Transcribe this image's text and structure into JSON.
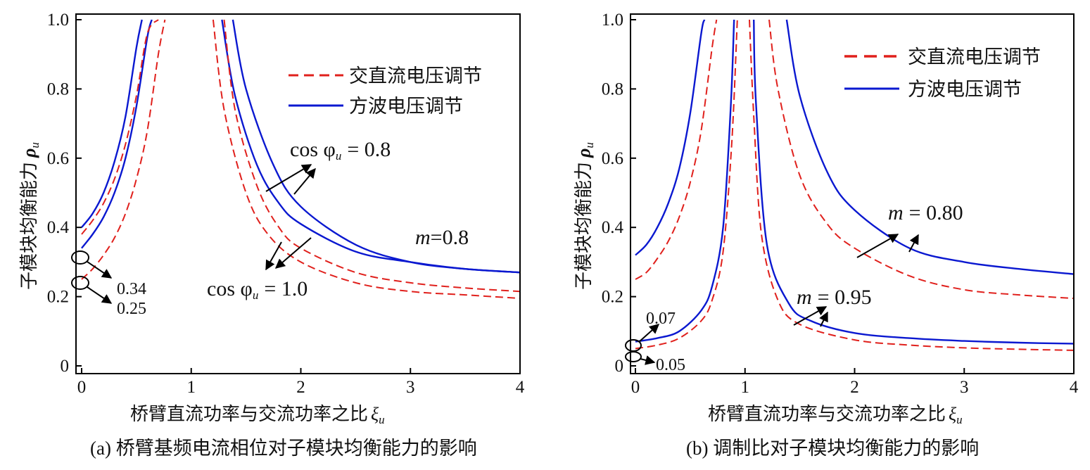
{
  "colors": {
    "ac_dc": "#e0201c",
    "square": "#0a18d0",
    "annotation": "#000000"
  },
  "chart_data": [
    {
      "type": "line",
      "caption": "(a) 桥臂基频电流相位对子模块均衡能力的影响",
      "xlabel": "桥臂直流功率与交流功率之比",
      "xlabel_symbol": "ξ",
      "xlabel_sub": "u",
      "ylabel": "子模块均衡能力",
      "ylabel_symbol": "ρ",
      "ylabel_sub": "u",
      "xlim": [
        0,
        4
      ],
      "ylim": [
        0,
        1.0
      ],
      "xticks": [
        "0",
        "1",
        "2",
        "3",
        "4"
      ],
      "yticks": [
        "0",
        "0.2",
        "0.4",
        "0.6",
        "0.8",
        "1.0"
      ],
      "legend": {
        "position": "top-right",
        "entries": [
          "交直流电压调节",
          "方波电压调节"
        ]
      },
      "annotations": {
        "m_label": "m=0.8",
        "cos_top": "cos φ",
        "cos_top_sub": "u",
        "cos_top_value": "= 0.8",
        "cos_bottom": "cos φ",
        "cos_bottom_sub": "u",
        "cos_bottom_value": "= 1.0",
        "val1": "0.34",
        "val2": "0.25"
      },
      "series": [
        {
          "legend": "方波电压调节",
          "style": "solid",
          "x_left": [
            0,
            0.1,
            0.2,
            0.3,
            0.4,
            0.5,
            0.55
          ],
          "y_left": [
            0.4,
            0.44,
            0.5,
            0.59,
            0.72,
            0.92,
            1.0
          ],
          "x_right": [
            1.38,
            1.5,
            1.75,
            2.0,
            2.5,
            3.0,
            3.5,
            4.0
          ],
          "y_right": [
            1.0,
            0.8,
            0.58,
            0.46,
            0.35,
            0.3,
            0.28,
            0.27
          ]
        },
        {
          "legend": "方波电压调节",
          "style": "solid",
          "x_left": [
            0,
            0.1,
            0.2,
            0.3,
            0.4,
            0.5,
            0.6,
            0.64
          ],
          "y_left": [
            0.34,
            0.38,
            0.43,
            0.5,
            0.6,
            0.75,
            0.95,
            1.0
          ],
          "x_right": [
            1.28,
            1.4,
            1.6,
            1.8,
            2.0,
            2.5,
            3.0,
            3.5,
            4.0
          ],
          "y_right": [
            1.0,
            0.78,
            0.58,
            0.47,
            0.41,
            0.33,
            0.3,
            0.28,
            0.27
          ]
        },
        {
          "legend": "交直流电压调节",
          "style": "dashed",
          "x_left": [
            0,
            0.1,
            0.2,
            0.3,
            0.4,
            0.5,
            0.6,
            0.7
          ],
          "y_left": [
            0.38,
            0.42,
            0.47,
            0.54,
            0.64,
            0.78,
            0.96,
            1.0
          ],
          "x_right": [
            1.3,
            1.4,
            1.6,
            1.8,
            2.0,
            2.5,
            3.0,
            3.5,
            4.0
          ],
          "y_right": [
            1.0,
            0.74,
            0.52,
            0.4,
            0.34,
            0.27,
            0.24,
            0.225,
            0.215
          ]
        },
        {
          "legend": "交直流电压调节",
          "style": "dashed",
          "x_left": [
            0,
            0.1,
            0.2,
            0.3,
            0.4,
            0.5,
            0.6,
            0.7,
            0.76
          ],
          "y_left": [
            0.25,
            0.28,
            0.32,
            0.37,
            0.44,
            0.54,
            0.68,
            0.9,
            1.0
          ],
          "x_right": [
            1.2,
            1.3,
            1.5,
            1.7,
            2.0,
            2.5,
            3.0,
            3.5,
            4.0
          ],
          "y_right": [
            1.0,
            0.74,
            0.5,
            0.38,
            0.3,
            0.24,
            0.215,
            0.205,
            0.195
          ]
        }
      ]
    },
    {
      "type": "line",
      "caption": "(b) 调制比对子模块均衡能力的影响",
      "xlabel": "桥臂直流功率与交流功率之比",
      "xlabel_symbol": "ξ",
      "xlabel_sub": "u",
      "ylabel": "子模块均衡能力",
      "ylabel_symbol": "ρ",
      "ylabel_sub": "u",
      "xlim": [
        0,
        4
      ],
      "ylim": [
        0,
        1.0
      ],
      "xticks": [
        "0",
        "1",
        "2",
        "3",
        "4"
      ],
      "yticks": [
        "0",
        "0.2",
        "0.4",
        "0.6",
        "0.8",
        "1.0"
      ],
      "legend": {
        "position": "top-right",
        "entries": [
          "交直流电压调节",
          "方波电压调节"
        ]
      },
      "annotations": {
        "m_top": "m",
        "m_top_value": "= 0.80",
        "m_bottom": "m",
        "m_bottom_value": "= 0.95",
        "val1": "0.07",
        "val2": "0.05"
      },
      "series": [
        {
          "legend": "方波电压调节",
          "style": "solid",
          "x_left": [
            0,
            0.1,
            0.2,
            0.3,
            0.4,
            0.5,
            0.6,
            0.63
          ],
          "y_left": [
            0.32,
            0.35,
            0.4,
            0.47,
            0.57,
            0.73,
            0.96,
            1.0
          ],
          "x_right": [
            1.38,
            1.5,
            1.75,
            2.0,
            2.5,
            3.0,
            3.5,
            4.0
          ],
          "y_right": [
            1.0,
            0.78,
            0.56,
            0.45,
            0.34,
            0.3,
            0.28,
            0.265
          ]
        },
        {
          "legend": "交直流电压调节",
          "style": "dashed",
          "x_left": [
            0,
            0.1,
            0.2,
            0.3,
            0.4,
            0.5,
            0.6,
            0.7,
            0.74
          ],
          "y_left": [
            0.25,
            0.27,
            0.31,
            0.36,
            0.43,
            0.53,
            0.68,
            0.92,
            1.0
          ],
          "x_right": [
            1.22,
            1.3,
            1.5,
            1.75,
            2.0,
            2.5,
            3.0,
            3.5,
            4.0
          ],
          "y_right": [
            1.0,
            0.8,
            0.55,
            0.41,
            0.34,
            0.26,
            0.22,
            0.205,
            0.195
          ]
        },
        {
          "legend": "方波电压调节",
          "style": "solid",
          "x_left": [
            0,
            0.2,
            0.4,
            0.6,
            0.7,
            0.8,
            0.87,
            0.9
          ],
          "y_left": [
            0.07,
            0.08,
            0.1,
            0.16,
            0.23,
            0.4,
            0.75,
            1.0
          ],
          "x_right": [
            1.08,
            1.1,
            1.2,
            1.4,
            1.6,
            2.0,
            2.5,
            3.0,
            3.5,
            4.0
          ],
          "y_right": [
            1.0,
            0.76,
            0.35,
            0.18,
            0.13,
            0.095,
            0.08,
            0.072,
            0.067,
            0.064
          ]
        },
        {
          "legend": "交直流电压调节",
          "style": "dashed",
          "x_left": [
            0,
            0.2,
            0.4,
            0.6,
            0.7,
            0.8,
            0.88,
            0.93
          ],
          "y_left": [
            0.05,
            0.06,
            0.08,
            0.13,
            0.19,
            0.33,
            0.65,
            1.0
          ],
          "x_right": [
            1.04,
            1.08,
            1.15,
            1.3,
            1.5,
            2.0,
            2.5,
            3.0,
            3.5,
            4.0
          ],
          "y_right": [
            1.0,
            0.72,
            0.38,
            0.19,
            0.12,
            0.075,
            0.06,
            0.052,
            0.048,
            0.045
          ]
        }
      ]
    }
  ]
}
